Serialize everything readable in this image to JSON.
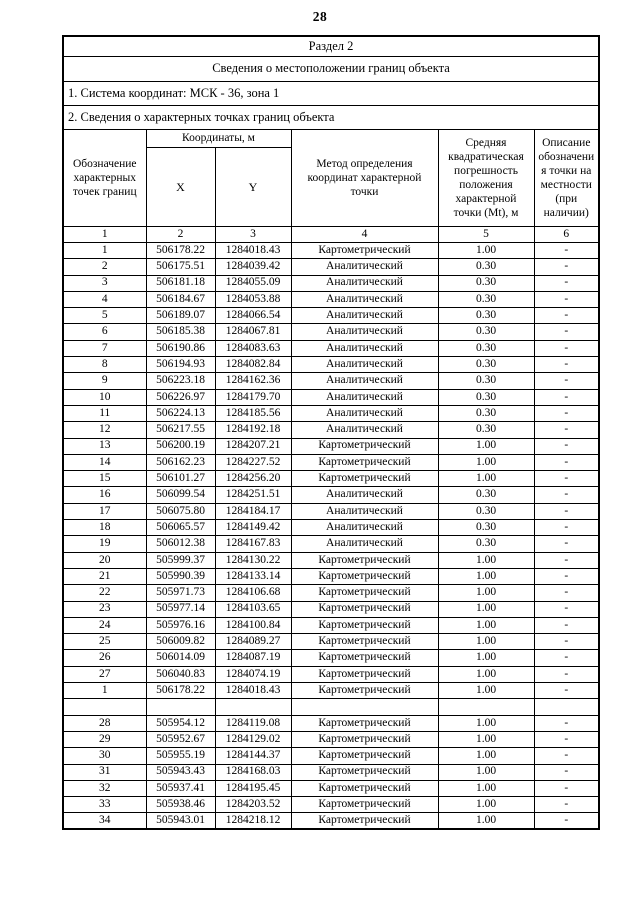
{
  "page": {
    "number": "28"
  },
  "table": {
    "section_title": "Раздел 2",
    "title": "Сведения о местоположении границ объекта",
    "coordinate_system_line": "1. Система координат: МСК - 36, зона 1",
    "points_heading_line": "2. Сведения о характерных точках границ объекта",
    "headers": {
      "point": "Обозначение характерных точек границ",
      "coordinates": "Координаты, м",
      "x": "X",
      "y": "Y",
      "method": "Метод определения координат характерной точки",
      "error": "Средняя квадратическая погрешность положения характерной точки (Mt), м",
      "description": "Описание обозначения точки на местности (при наличии)"
    },
    "column_numbers": [
      "1",
      "2",
      "3",
      "4",
      "5",
      "6"
    ],
    "rows": [
      [
        "1",
        "506178.22",
        "1284018.43",
        "Картометрический",
        "1.00",
        "-"
      ],
      [
        "2",
        "506175.51",
        "1284039.42",
        "Аналитический",
        "0.30",
        "-"
      ],
      [
        "3",
        "506181.18",
        "1284055.09",
        "Аналитический",
        "0.30",
        "-"
      ],
      [
        "4",
        "506184.67",
        "1284053.88",
        "Аналитический",
        "0.30",
        "-"
      ],
      [
        "5",
        "506189.07",
        "1284066.54",
        "Аналитический",
        "0.30",
        "-"
      ],
      [
        "6",
        "506185.38",
        "1284067.81",
        "Аналитический",
        "0.30",
        "-"
      ],
      [
        "7",
        "506190.86",
        "1284083.63",
        "Аналитический",
        "0.30",
        "-"
      ],
      [
        "8",
        "506194.93",
        "1284082.84",
        "Аналитический",
        "0.30",
        "-"
      ],
      [
        "9",
        "506223.18",
        "1284162.36",
        "Аналитический",
        "0.30",
        "-"
      ],
      [
        "10",
        "506226.97",
        "1284179.70",
        "Аналитический",
        "0.30",
        "-"
      ],
      [
        "11",
        "506224.13",
        "1284185.56",
        "Аналитический",
        "0.30",
        "-"
      ],
      [
        "12",
        "506217.55",
        "1284192.18",
        "Аналитический",
        "0.30",
        "-"
      ],
      [
        "13",
        "506200.19",
        "1284207.21",
        "Картометрический",
        "1.00",
        "-"
      ],
      [
        "14",
        "506162.23",
        "1284227.52",
        "Картометрический",
        "1.00",
        "-"
      ],
      [
        "15",
        "506101.27",
        "1284256.20",
        "Картометрический",
        "1.00",
        "-"
      ],
      [
        "16",
        "506099.54",
        "1284251.51",
        "Аналитический",
        "0.30",
        "-"
      ],
      [
        "17",
        "506075.80",
        "1284184.17",
        "Аналитический",
        "0.30",
        "-"
      ],
      [
        "18",
        "506065.57",
        "1284149.42",
        "Аналитический",
        "0.30",
        "-"
      ],
      [
        "19",
        "506012.38",
        "1284167.83",
        "Аналитический",
        "0.30",
        "-"
      ],
      [
        "20",
        "505999.37",
        "1284130.22",
        "Картометрический",
        "1.00",
        "-"
      ],
      [
        "21",
        "505990.39",
        "1284133.14",
        "Картометрический",
        "1.00",
        "-"
      ],
      [
        "22",
        "505971.73",
        "1284106.68",
        "Картометрический",
        "1.00",
        "-"
      ],
      [
        "23",
        "505977.14",
        "1284103.65",
        "Картометрический",
        "1.00",
        "-"
      ],
      [
        "24",
        "505976.16",
        "1284100.84",
        "Картометрический",
        "1.00",
        "-"
      ],
      [
        "25",
        "506009.82",
        "1284089.27",
        "Картометрический",
        "1.00",
        "-"
      ],
      [
        "26",
        "506014.09",
        "1284087.19",
        "Картометрический",
        "1.00",
        "-"
      ],
      [
        "27",
        "506040.83",
        "1284074.19",
        "Картометрический",
        "1.00",
        "-"
      ],
      [
        "1",
        "506178.22",
        "1284018.43",
        "Картометрический",
        "1.00",
        "-"
      ],
      [
        "",
        "",
        "",
        "",
        "",
        ""
      ],
      [
        "28",
        "505954.12",
        "1284119.08",
        "Картометрический",
        "1.00",
        "-"
      ],
      [
        "29",
        "505952.67",
        "1284129.02",
        "Картометрический",
        "1.00",
        "-"
      ],
      [
        "30",
        "505955.19",
        "1284144.37",
        "Картометрический",
        "1.00",
        "-"
      ],
      [
        "31",
        "505943.43",
        "1284168.03",
        "Картометрический",
        "1.00",
        "-"
      ],
      [
        "32",
        "505937.41",
        "1284195.45",
        "Картометрический",
        "1.00",
        "-"
      ],
      [
        "33",
        "505938.46",
        "1284203.52",
        "Картометрический",
        "1.00",
        "-"
      ],
      [
        "34",
        "505943.01",
        "1284218.12",
        "Картометрический",
        "1.00",
        "-"
      ]
    ]
  }
}
